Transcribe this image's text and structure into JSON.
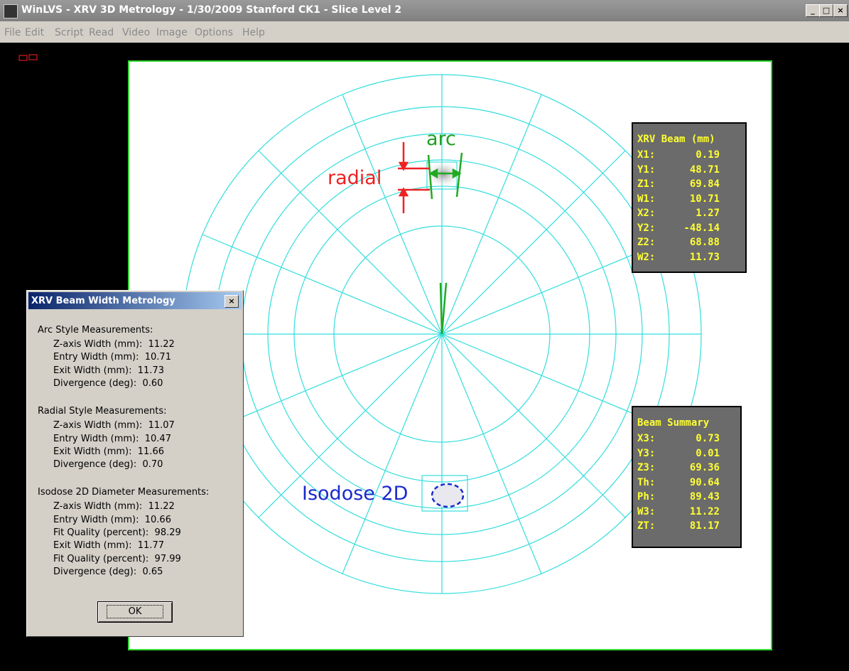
{
  "window": {
    "title": "WinLVS - XRV 3D Metrology - 1/30/2009 Stanford CK1 - Slice Level 2",
    "menu": [
      "File",
      "Edit",
      "Script",
      "Read",
      "Video",
      "Image",
      "Options",
      "Help"
    ]
  },
  "annotations": {
    "arc": "arc",
    "radial": "radial",
    "isodose": "Isodose 2D"
  },
  "beam_panel": {
    "title": "XRV Beam (mm)",
    "rows": [
      [
        "X1:",
        "0.19"
      ],
      [
        "Y1:",
        "48.71"
      ],
      [
        "Z1:",
        "69.84"
      ],
      [
        "W1:",
        "10.71"
      ],
      [
        "X2:",
        "1.27"
      ],
      [
        "Y2:",
        "-48.14"
      ],
      [
        "Z2:",
        "68.88"
      ],
      [
        "W2:",
        "11.73"
      ]
    ]
  },
  "summary_panel": {
    "title": "Beam Summary",
    "rows": [
      [
        "X3:",
        "0.73"
      ],
      [
        "Y3:",
        "0.01"
      ],
      [
        "Z3:",
        "69.36"
      ],
      [
        "Th:",
        "90.64"
      ],
      [
        "Ph:",
        "89.43"
      ],
      [
        "W3:",
        "11.22"
      ],
      [
        "ZT:",
        "81.17"
      ]
    ]
  },
  "dialog": {
    "title": "XRV Beam Width Metrology",
    "sections": [
      {
        "heading": "Arc Style Measurements:",
        "rows": [
          [
            "Z-axis Width (mm):",
            "11.22"
          ],
          [
            "Entry Width (mm):",
            "10.71"
          ],
          [
            "Exit Width (mm):",
            "11.73"
          ],
          [
            "Divergence (deg):",
            "0.60"
          ]
        ]
      },
      {
        "heading": "Radial Style Measurements:",
        "rows": [
          [
            "Z-axis Width (mm):",
            "11.07"
          ],
          [
            "Entry Width (mm):",
            "10.47"
          ],
          [
            "Exit Width (mm):",
            "11.66"
          ],
          [
            "Divergence (deg):",
            "0.70"
          ]
        ]
      },
      {
        "heading": "Isodose 2D Diameter Measurements:",
        "rows": [
          [
            "Z-axis Width (mm):",
            "11.22"
          ],
          [
            "Entry Width (mm):",
            "10.66"
          ],
          [
            "Fit Quality (percent):",
            "98.29"
          ],
          [
            "Exit Width (mm):",
            "11.77"
          ],
          [
            "Fit Quality (percent):",
            "97.99"
          ],
          [
            "Divergence (deg):",
            "0.65"
          ]
        ]
      }
    ],
    "ok": "OK"
  }
}
